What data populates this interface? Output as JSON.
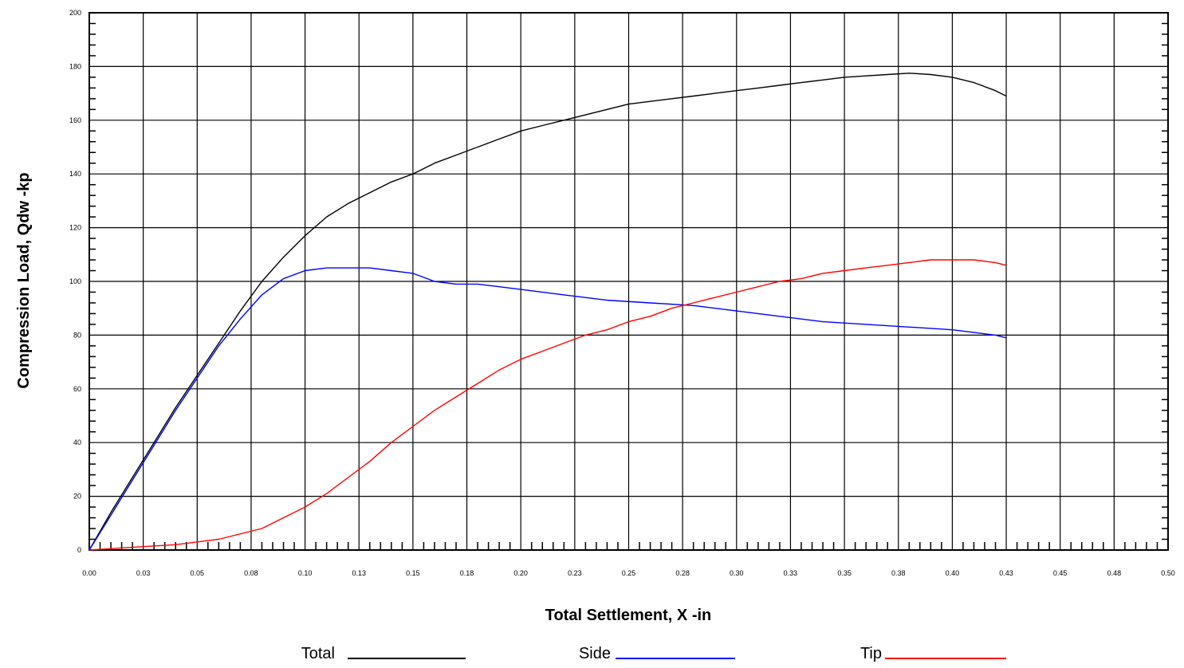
{
  "chart_data": {
    "type": "line",
    "xlabel": "Total Settlement, X -in",
    "ylabel": "Compression Load,  Qdw -kp",
    "xlim": [
      0,
      0.5
    ],
    "ylim": [
      0,
      200
    ],
    "grid": true,
    "legend_position": "bottom",
    "x_tick_labels": [
      "0.00",
      "0.03",
      "0.05",
      "0.08",
      "0.10",
      "0.13",
      "0.15",
      "0.18",
      "0.20",
      "0.23",
      "0.25",
      "0.28",
      "0.30",
      "0.33",
      "0.35",
      "0.38",
      "0.40",
      "0.43",
      "0.45",
      "0.48",
      "0.50"
    ],
    "y_tick_labels": [
      "0",
      "20",
      "40",
      "60",
      "80",
      "100",
      "120",
      "140",
      "160",
      "180",
      "200"
    ],
    "series": [
      {
        "name": "Total",
        "color": "#000000",
        "x": [
          0,
          0.01,
          0.02,
          0.03,
          0.04,
          0.05,
          0.06,
          0.07,
          0.08,
          0.09,
          0.1,
          0.11,
          0.12,
          0.13,
          0.14,
          0.15,
          0.16,
          0.17,
          0.18,
          0.19,
          0.2,
          0.21,
          0.22,
          0.23,
          0.24,
          0.25,
          0.26,
          0.27,
          0.28,
          0.29,
          0.3,
          0.31,
          0.32,
          0.33,
          0.34,
          0.35,
          0.36,
          0.37,
          0.38,
          0.39,
          0.4,
          0.41,
          0.42,
          0.425
        ],
        "y": [
          0,
          14,
          27,
          40,
          53,
          65,
          77,
          89,
          100,
          109,
          117,
          124,
          129,
          133,
          137,
          140,
          144,
          147,
          150,
          153,
          156,
          158,
          160,
          162,
          164,
          166,
          167,
          168,
          169,
          170,
          171,
          172,
          173,
          174,
          175,
          176,
          176.5,
          177,
          177.5,
          177,
          176,
          174,
          171,
          169
        ]
      },
      {
        "name": "Side",
        "color": "#0000ff",
        "x": [
          0,
          0.01,
          0.02,
          0.03,
          0.04,
          0.05,
          0.06,
          0.07,
          0.08,
          0.09,
          0.1,
          0.11,
          0.12,
          0.13,
          0.14,
          0.15,
          0.16,
          0.17,
          0.18,
          0.19,
          0.2,
          0.22,
          0.24,
          0.26,
          0.28,
          0.3,
          0.32,
          0.34,
          0.36,
          0.38,
          0.4,
          0.42,
          0.425
        ],
        "y": [
          0,
          13,
          26,
          39,
          52,
          64,
          76,
          86,
          95,
          101,
          104,
          105,
          105,
          105,
          104,
          103,
          100,
          99,
          99,
          98,
          97,
          95,
          93,
          92,
          91,
          89,
          87,
          85,
          84,
          83,
          82,
          80,
          79
        ]
      },
      {
        "name": "Tip",
        "color": "#ff0000",
        "x": [
          0,
          0.02,
          0.04,
          0.06,
          0.08,
          0.09,
          0.1,
          0.11,
          0.12,
          0.13,
          0.14,
          0.15,
          0.16,
          0.17,
          0.18,
          0.19,
          0.2,
          0.21,
          0.22,
          0.23,
          0.24,
          0.25,
          0.26,
          0.27,
          0.28,
          0.29,
          0.3,
          0.31,
          0.32,
          0.33,
          0.34,
          0.35,
          0.36,
          0.37,
          0.38,
          0.39,
          0.4,
          0.41,
          0.42,
          0.425
        ],
        "y": [
          0,
          1,
          2,
          4,
          8,
          12,
          16,
          21,
          27,
          33,
          40,
          46,
          52,
          57,
          62,
          67,
          71,
          74,
          77,
          80,
          82,
          85,
          87,
          90,
          92,
          94,
          96,
          98,
          100,
          101,
          103,
          104,
          105,
          106,
          107,
          108,
          108,
          108,
          107,
          106
        ]
      }
    ]
  }
}
